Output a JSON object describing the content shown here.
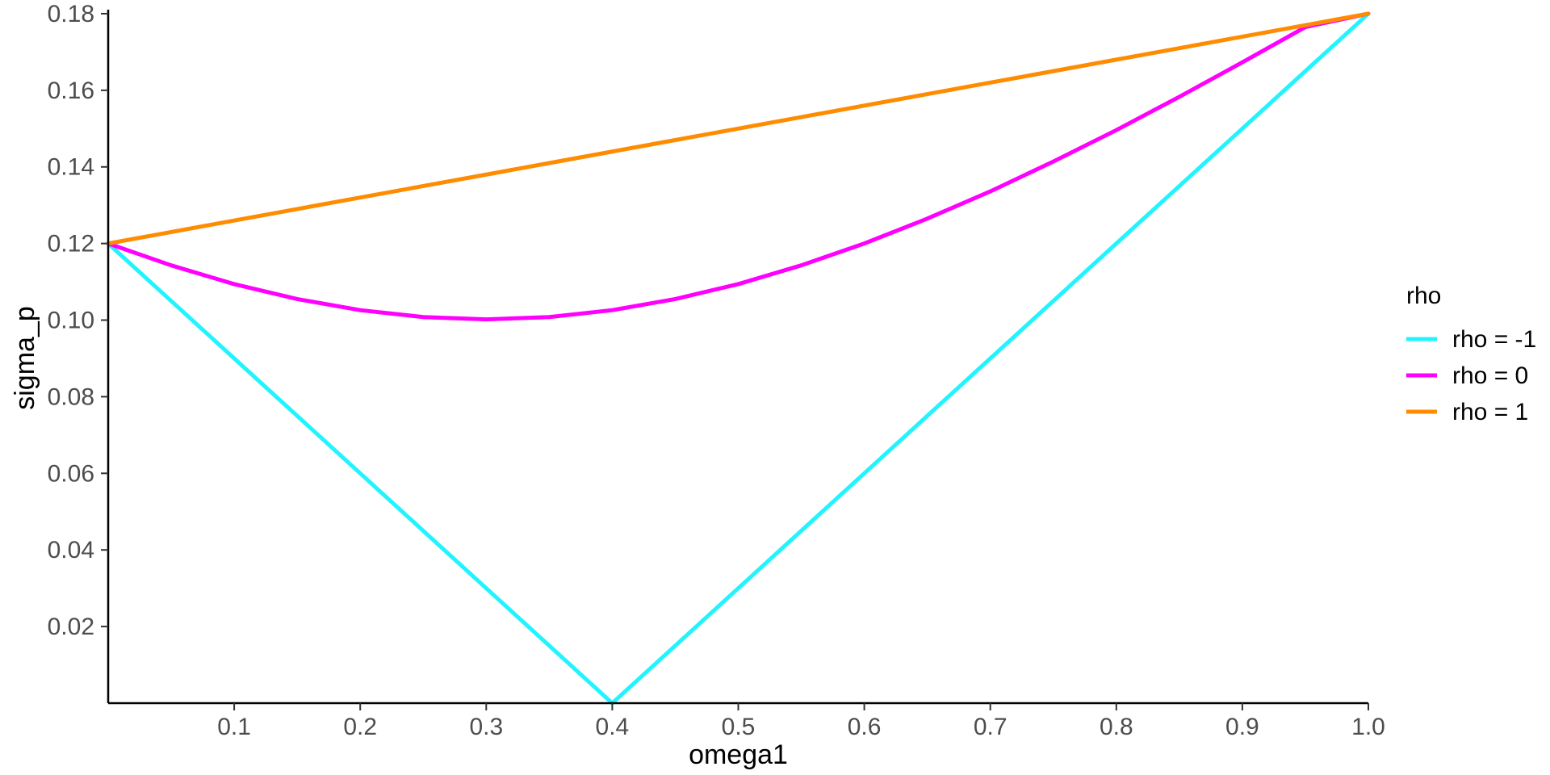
{
  "chart_data": {
    "type": "line",
    "xlabel": "omega1",
    "ylabel": "sigma_p",
    "xlim": [
      0,
      1
    ],
    "ylim": [
      0,
      0.18
    ],
    "x_ticks": [
      0.1,
      0.2,
      0.3,
      0.4,
      0.5,
      0.6,
      0.7,
      0.8,
      0.9,
      1.0
    ],
    "x_tick_labels": [
      "0.1",
      "0.2",
      "0.3",
      "0.4",
      "0.5",
      "0.6",
      "0.7",
      "0.8",
      "0.9",
      "1.0"
    ],
    "y_ticks": [
      0.02,
      0.04,
      0.06,
      0.08,
      0.1,
      0.12,
      0.14,
      0.16,
      0.18
    ],
    "y_tick_labels": [
      "0.02",
      "0.04",
      "0.06",
      "0.08",
      "0.10",
      "0.12",
      "0.14",
      "0.16",
      "0.18"
    ],
    "grid": false,
    "legend": {
      "title": "rho",
      "placement": "right"
    },
    "x": [
      0,
      0.05,
      0.1,
      0.15,
      0.2,
      0.25,
      0.3,
      0.35,
      0.4,
      0.45,
      0.5,
      0.55,
      0.6,
      0.65,
      0.7,
      0.75,
      0.8,
      0.85,
      0.9,
      0.95,
      1.0
    ],
    "series": [
      {
        "name": "rho = -1",
        "color": "#22f4ff",
        "values": [
          0.12,
          0.105,
          0.09,
          0.075,
          0.06,
          0.045,
          0.03,
          0.015,
          0.0,
          0.015,
          0.03,
          0.045,
          0.06,
          0.075,
          0.09,
          0.105,
          0.12,
          0.135,
          0.15,
          0.165,
          0.18
        ]
      },
      {
        "name": "rho = 0",
        "color": "#ff00ff",
        "values": [
          0.12,
          0.1143,
          0.1094,
          0.1055,
          0.1026,
          0.1008,
          0.1002,
          0.1008,
          0.1026,
          0.1055,
          0.1094,
          0.1143,
          0.12,
          0.1265,
          0.1336,
          0.1414,
          0.1496,
          0.1583,
          0.1673,
          0.1765,
          0.18
        ]
      },
      {
        "name": "rho = 1",
        "color": "#ff8c00",
        "values": [
          0.12,
          0.123,
          0.126,
          0.129,
          0.132,
          0.135,
          0.138,
          0.141,
          0.144,
          0.147,
          0.15,
          0.153,
          0.156,
          0.159,
          0.162,
          0.165,
          0.168,
          0.171,
          0.174,
          0.177,
          0.18
        ]
      }
    ]
  }
}
